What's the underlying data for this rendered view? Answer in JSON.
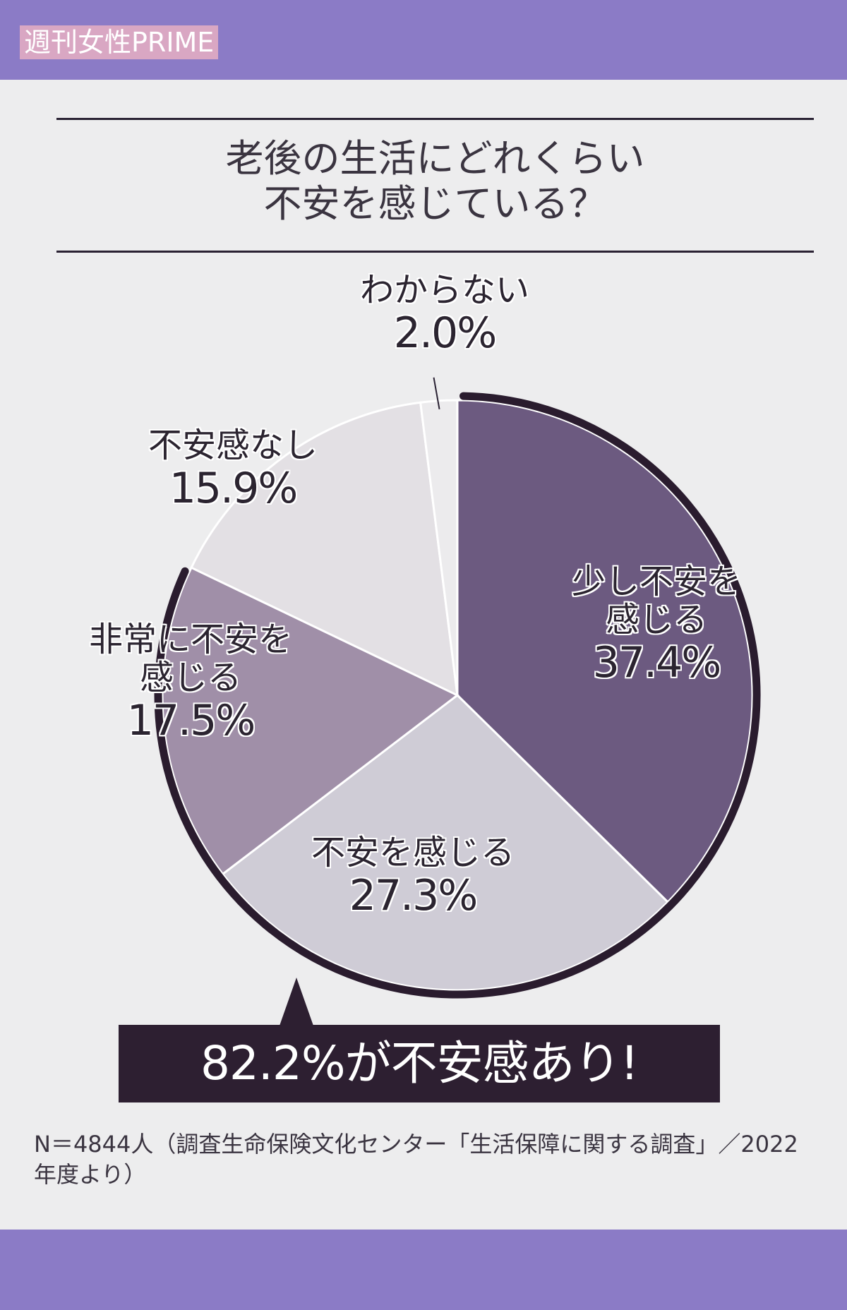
{
  "brand": {
    "logo_text": "週刊女性PRIME"
  },
  "colors": {
    "band": "#8b7bc6",
    "background": "#ededee",
    "slice_little": "#6c5a80",
    "slice_anxious": "#cfccd6",
    "slice_very": "#a08fa8",
    "slice_none": "#e3e0e4",
    "slice_unknown": "#ecebed",
    "outline": "#2a1c2e",
    "callout": "#2d1f31"
  },
  "chart_data": {
    "type": "pie",
    "title": "老後の生活にどれくらい不安を感じている？",
    "title_lines": [
      "老後の生活にどれくらい",
      "不安を感じている？"
    ],
    "slices": [
      {
        "label_lines": [
          "少し不安を",
          "感じる"
        ],
        "value": 37.4,
        "display": "37.4%"
      },
      {
        "label_lines": [
          "不安を感じる"
        ],
        "value": 27.3,
        "display": "27.3%"
      },
      {
        "label_lines": [
          "非常に不安を",
          "感じる"
        ],
        "value": 17.5,
        "display": "17.5%"
      },
      {
        "label_lines": [
          "不安感なし"
        ],
        "value": 15.9,
        "display": "15.9%"
      },
      {
        "label_lines": [
          "わからない"
        ],
        "value": 2.0,
        "display": "2.0%"
      }
    ],
    "callout": "82.2%が不安感あり!",
    "source": "N＝4844人（調査生命保険文化センター「生活保障に関する調査」／2022年度より）"
  }
}
